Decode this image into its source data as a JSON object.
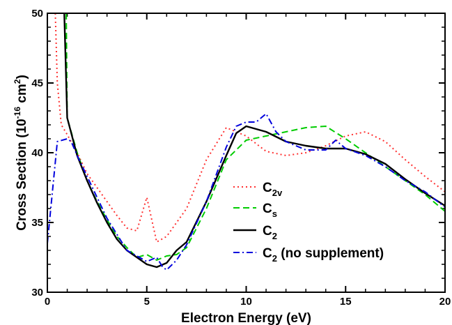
{
  "chart_data": {
    "type": "line",
    "title": "",
    "xlabel": "Electron Energy (eV)",
    "ylabel_parts": {
      "main": "Cross Section (10",
      "exp1": "-16",
      "unit": " cm",
      "exp2": "2",
      "close": ")"
    },
    "xlim": [
      0,
      20
    ],
    "ylim": [
      30,
      50
    ],
    "xticks": [
      0,
      5,
      10,
      15,
      20
    ],
    "yticks": [
      30,
      35,
      40,
      45,
      50
    ],
    "grid": false,
    "legend_position": "right-center",
    "series": [
      {
        "name": "C2v",
        "name_main": "C",
        "name_sub": "2v",
        "color": "#ff3030",
        "dash": "dotted",
        "x": [
          0.4,
          0.5,
          0.7,
          1.0,
          1.5,
          2.0,
          3.0,
          3.5,
          4.0,
          4.5,
          5.0,
          5.5,
          6.0,
          7.0,
          8.0,
          9.0,
          10.0,
          11.0,
          12.0,
          13.0,
          14.0,
          15.0,
          16.0,
          17.0,
          18.0,
          19.0,
          20.0
        ],
        "y": [
          50,
          45.0,
          42.0,
          41.3,
          40.0,
          38.5,
          36.5,
          35.5,
          34.6,
          34.4,
          36.8,
          33.6,
          34.0,
          36.0,
          39.5,
          41.8,
          41.2,
          40.1,
          39.8,
          40.0,
          40.5,
          41.2,
          41.5,
          40.8,
          39.5,
          38.3,
          37.2
        ]
      },
      {
        "name": "Cs",
        "name_main": "C",
        "name_sub": "s",
        "color": "#00cc00",
        "dash": "dashed",
        "x": [
          0.95,
          1.0,
          1.5,
          2.0,
          2.5,
          3.0,
          3.5,
          4.0,
          4.5,
          5.0,
          5.5,
          6.0,
          6.5,
          7.0,
          8.0,
          9.0,
          10.0,
          11.0,
          12.0,
          13.0,
          14.0,
          15.0,
          16.0,
          17.0,
          18.0,
          19.0,
          20.0
        ],
        "y": [
          50,
          42.5,
          40.0,
          38.0,
          36.5,
          35.2,
          34.0,
          33.2,
          32.5,
          32.7,
          32.3,
          32.6,
          32.7,
          33.2,
          36.0,
          39.5,
          40.9,
          41.2,
          41.5,
          41.8,
          41.9,
          41.0,
          40.0,
          39.0,
          38.0,
          37.0,
          35.8
        ]
      },
      {
        "name": "C2",
        "name_main": "C",
        "name_sub": "2",
        "color": "#000000",
        "dash": "solid",
        "x": [
          0.85,
          1.0,
          1.5,
          2.0,
          2.5,
          3.0,
          3.5,
          4.0,
          4.5,
          5.0,
          5.5,
          6.0,
          6.5,
          7.0,
          8.0,
          9.0,
          9.5,
          10.0,
          11.0,
          12.0,
          13.0,
          14.0,
          15.0,
          16.0,
          17.0,
          18.0,
          19.0,
          20.0
        ],
        "y": [
          50,
          42.5,
          39.8,
          38.0,
          36.4,
          35.0,
          33.8,
          33.0,
          32.5,
          32.0,
          31.8,
          32.1,
          33.0,
          33.6,
          36.5,
          39.8,
          41.4,
          41.9,
          41.5,
          40.8,
          40.5,
          40.3,
          40.3,
          39.9,
          39.2,
          38.1,
          37.1,
          36.2
        ]
      },
      {
        "name": "C2 (no supplement)",
        "name_main": "C",
        "name_sub": "2",
        "name_rest": " (no supplement)",
        "color": "#0000dd",
        "dash": "dashdot",
        "x": [
          0.0,
          0.5,
          1.0,
          1.2,
          1.5,
          2.0,
          3.0,
          4.0,
          5.0,
          5.5,
          5.8,
          6.0,
          6.5,
          7.0,
          8.0,
          9.0,
          9.5,
          10.0,
          10.5,
          11.0,
          11.5,
          12.0,
          13.0,
          14.0,
          14.5,
          15.0,
          16.0,
          17.0,
          18.0,
          19.0,
          20.0
        ],
        "y": [
          33.5,
          40.8,
          41.0,
          40.8,
          39.8,
          38.3,
          35.3,
          33.0,
          32.2,
          32.5,
          31.8,
          31.6,
          32.3,
          33.4,
          36.5,
          40.4,
          41.9,
          42.2,
          42.2,
          42.8,
          41.5,
          40.8,
          40.2,
          40.2,
          40.9,
          40.3,
          39.8,
          39.0,
          38.0,
          37.2,
          36.1
        ]
      }
    ]
  }
}
